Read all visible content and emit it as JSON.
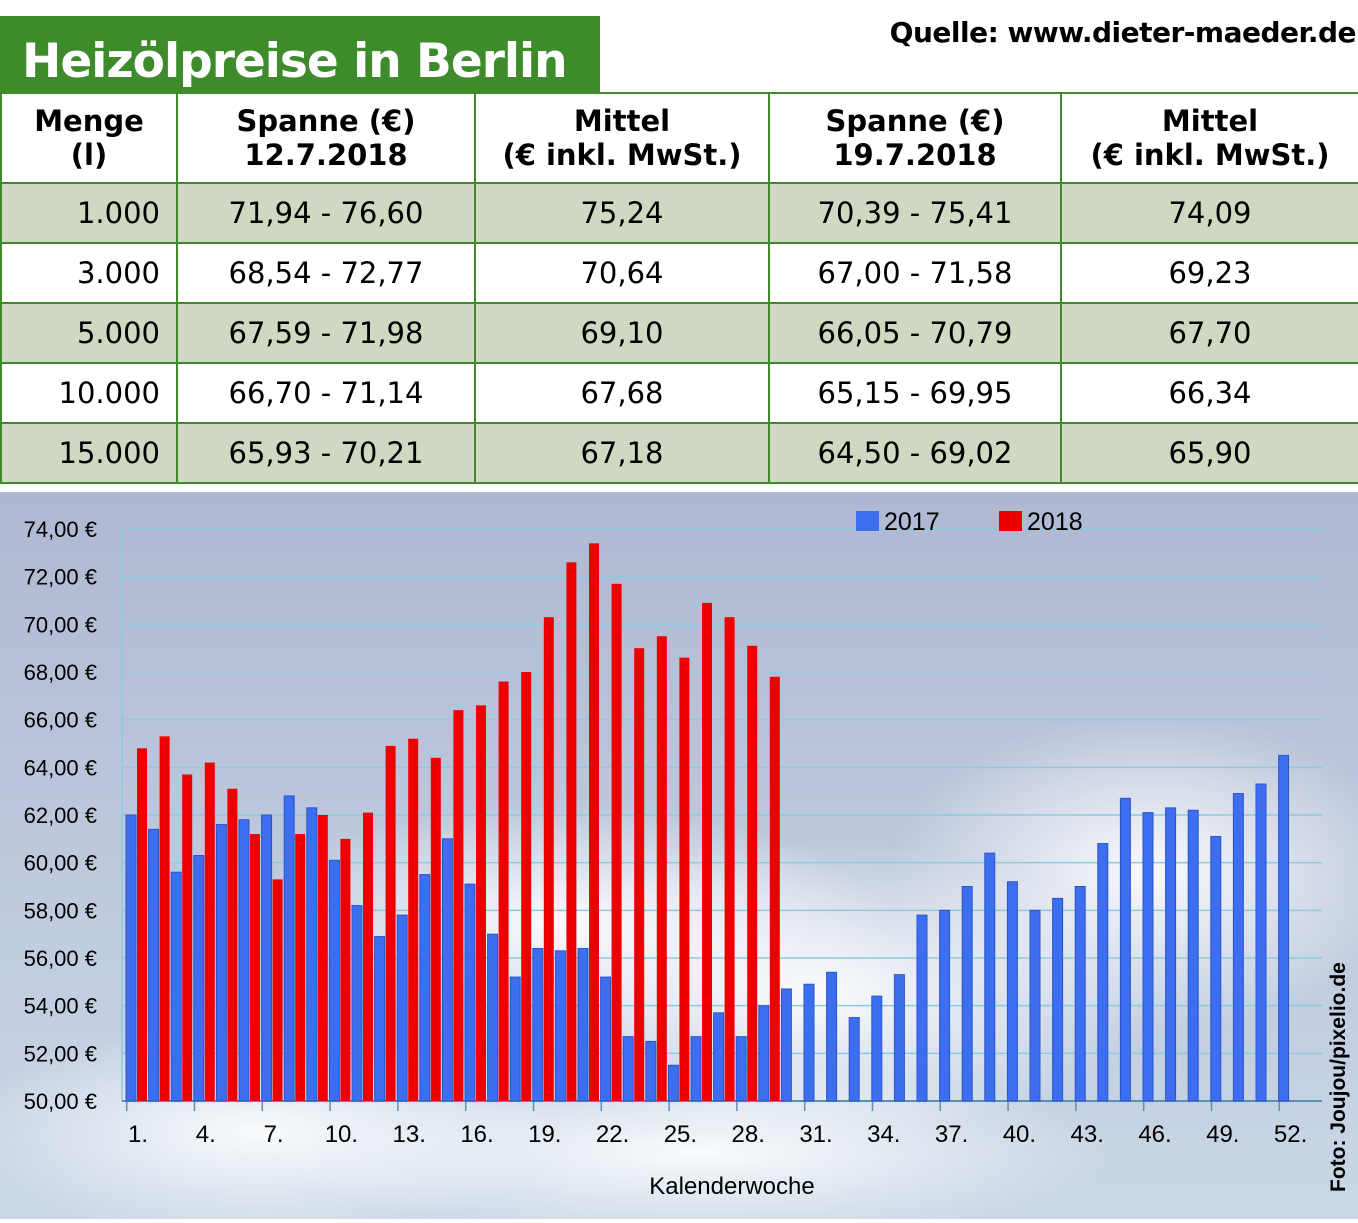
{
  "header": {
    "title": "Heizölpreise in Berlin",
    "source": "Quelle: www.dieter-maeder.de"
  },
  "table": {
    "columns": [
      {
        "line1": "Menge",
        "line2": "(l)"
      },
      {
        "line1": "Spanne (€)",
        "line2": "12.7.2018"
      },
      {
        "line1": "Mittel",
        "line2": "(€ inkl. MwSt.)"
      },
      {
        "line1": "Spanne (€)",
        "line2": "19.7.2018"
      },
      {
        "line1": "Mittel",
        "line2": "(€ inkl. MwSt.)"
      }
    ],
    "rows": [
      [
        "1.000",
        "71,94 - 76,60",
        "75,24",
        "70,39 - 75,41",
        "74,09"
      ],
      [
        "3.000",
        "68,54 - 72,77",
        "70,64",
        "67,00 - 71,58",
        "69,23"
      ],
      [
        "5.000",
        "67,59 - 71,98",
        "69,10",
        "66,05 - 70,79",
        "67,70"
      ],
      [
        "10.000",
        "66,70 - 71,14",
        "67,68",
        "65,15 - 69,95",
        "66,34"
      ],
      [
        "15.000",
        "65,93 - 70,21",
        "67,18",
        "64,50 - 69,02",
        "65,90"
      ]
    ]
  },
  "colors": {
    "header_green": "#3e8b2c",
    "row_shade": "#cfd9c2",
    "series_2017": "#3d6ef0",
    "series_2018": "#ee0000"
  },
  "chart_data": {
    "type": "bar",
    "xlabel": "Kalenderwoche",
    "ylim": [
      50,
      74
    ],
    "y_ticks": [
      "50,00 €",
      "52,00 €",
      "54,00 €",
      "56,00 €",
      "58,00 €",
      "60,00 €",
      "62,00 €",
      "64,00 €",
      "66,00 €",
      "68,00 €",
      "70,00 €",
      "72,00 €",
      "74,00 €"
    ],
    "x_ticks": [
      "1.",
      "4.",
      "7.",
      "10.",
      "13.",
      "16.",
      "19.",
      "22.",
      "25.",
      "28.",
      "31.",
      "34.",
      "37.",
      "40.",
      "43.",
      "46.",
      "49.",
      "52."
    ],
    "legend_position": "top-right",
    "grid": true,
    "series": [
      {
        "name": "2017",
        "values": [
          62.0,
          61.4,
          59.6,
          60.3,
          61.6,
          61.8,
          62.0,
          62.8,
          62.3,
          60.1,
          58.2,
          56.9,
          57.8,
          59.5,
          61.0,
          59.1,
          57.0,
          55.2,
          56.4,
          56.3,
          56.4,
          55.2,
          52.7,
          52.5,
          51.5,
          52.7,
          53.7,
          52.7,
          54.0,
          54.7,
          54.9,
          55.4,
          53.5,
          54.4,
          55.3,
          57.8,
          58.0,
          59.0,
          60.4,
          59.2,
          58.0,
          58.5,
          59.0,
          60.8,
          62.7,
          62.1,
          62.3,
          62.2,
          61.1,
          62.9,
          63.3,
          64.5
        ]
      },
      {
        "name": "2018",
        "values": [
          64.8,
          65.3,
          63.7,
          64.2,
          63.1,
          61.2,
          59.3,
          61.2,
          62.0,
          61.0,
          62.1,
          64.9,
          65.2,
          64.4,
          66.4,
          66.6,
          67.6,
          68.0,
          70.3,
          72.6,
          73.4,
          71.7,
          69.0,
          69.5,
          68.6,
          70.9,
          70.3,
          69.1,
          67.8
        ]
      }
    ],
    "credit": "Foto: Joujou/pixelio.de"
  }
}
